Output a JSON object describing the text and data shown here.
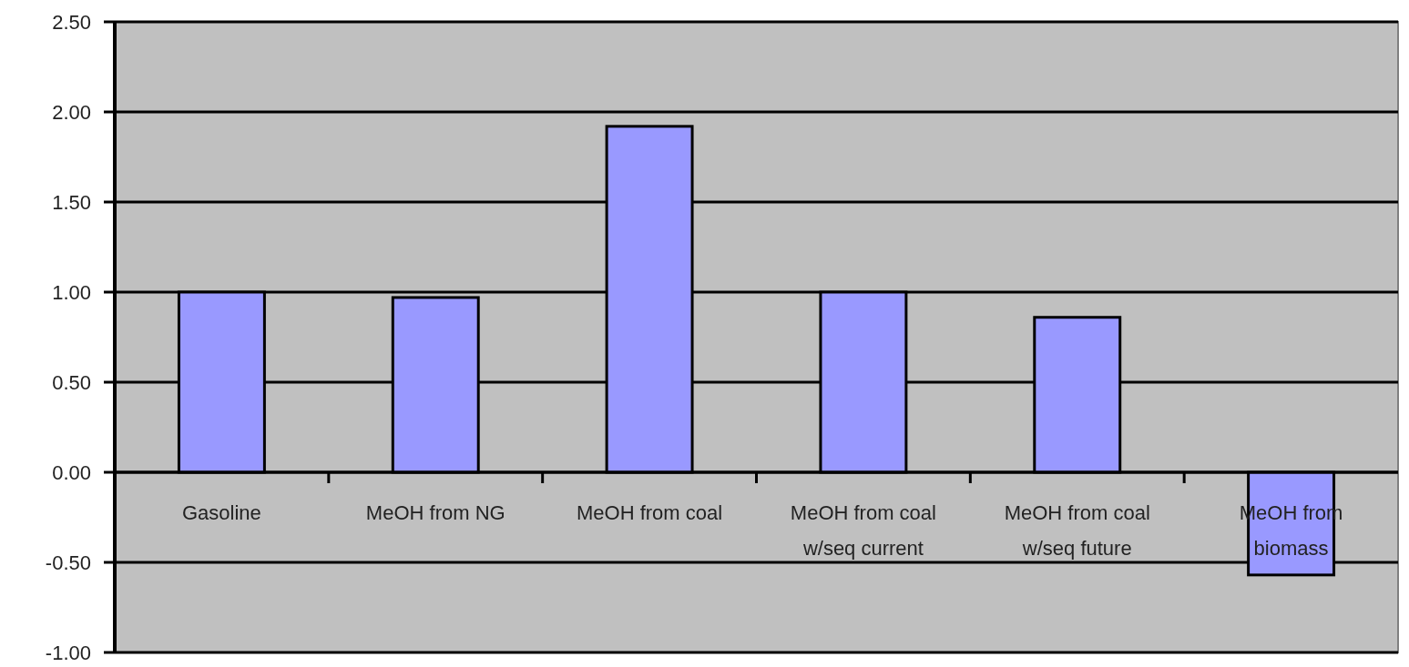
{
  "chart_data": {
    "type": "bar",
    "categories": [
      "Gasoline",
      "MeOH from NG",
      "MeOH from coal",
      "MeOH from coal w/seq current",
      "MeOH from coal w/seq future",
      "MeOH from biomass"
    ],
    "values": [
      1.0,
      0.97,
      1.92,
      1.0,
      0.86,
      -0.57
    ],
    "color": "#9999ff",
    "ylim": [
      -1,
      2.5
    ],
    "yticks": [
      {
        "value": -1,
        "label": "-1.00"
      },
      {
        "value": -0.5,
        "label": "-0.50"
      },
      {
        "value": 0,
        "label": "0.00"
      },
      {
        "value": 0.5,
        "label": "0.50"
      },
      {
        "value": 1,
        "label": "1.00"
      },
      {
        "value": 1.5,
        "label": "1.50"
      },
      {
        "value": 2,
        "label": "2.00"
      },
      {
        "value": 2.5,
        "label": "2.50"
      }
    ],
    "grid": "y"
  }
}
